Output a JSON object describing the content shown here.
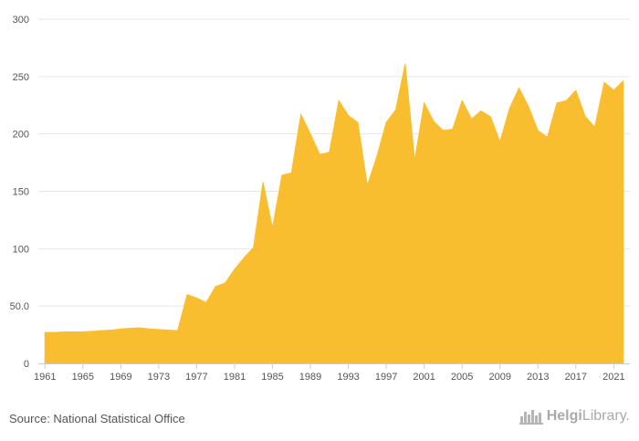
{
  "chart_data": {
    "type": "area",
    "series": [
      {
        "color": "#f9be2f",
        "x": [
          1961,
          1962,
          1963,
          1964,
          1965,
          1966,
          1967,
          1968,
          1969,
          1970,
          1971,
          1972,
          1973,
          1974,
          1975,
          1976,
          1977,
          1978,
          1979,
          1980,
          1981,
          1982,
          1983,
          1984,
          1985,
          1986,
          1987,
          1988,
          1989,
          1990,
          1991,
          1992,
          1993,
          1994,
          1995,
          1996,
          1997,
          1998,
          1999,
          2000,
          2001,
          2002,
          2003,
          2004,
          2005,
          2006,
          2007,
          2008,
          2009,
          2010,
          2011,
          2012,
          2013,
          2014,
          2015,
          2016,
          2017,
          2018,
          2019,
          2020,
          2021,
          2022
        ],
        "values": [
          27,
          27,
          27.5,
          27.5,
          27.5,
          28,
          28.5,
          29,
          30,
          30.5,
          31,
          30,
          29.5,
          29,
          28.5,
          60,
          57,
          53,
          67,
          70,
          82,
          92,
          101,
          158,
          118,
          164,
          166,
          217,
          200,
          182,
          184,
          229,
          216,
          210,
          155,
          180,
          210,
          221,
          261,
          177,
          227,
          211,
          203,
          204,
          229,
          213,
          220,
          215,
          193,
          222,
          240,
          224,
          203,
          197,
          227,
          229,
          238,
          215,
          206,
          245,
          238,
          246
        ]
      }
    ],
    "xlim": [
      1960.3,
      2022.7
    ],
    "ylim": [
      0,
      300
    ],
    "x_ticks": [
      "1961",
      "1965",
      "1969",
      "1973",
      "1977",
      "1981",
      "1985",
      "1989",
      "1993",
      "1997",
      "2001",
      "2005",
      "2009",
      "2013",
      "2017",
      "2021"
    ],
    "y_ticks": [
      "0",
      "50.0",
      "100",
      "150",
      "200",
      "250",
      "300"
    ],
    "y_tick_values": [
      0,
      50,
      100,
      150,
      200,
      250,
      300
    ],
    "grid": true,
    "gridColor": "#e6e6e6",
    "axisColor": "#cccccc"
  },
  "footer": {
    "source": "Source: National Statistical Office",
    "brand_prefix": "Helgi",
    "brand_suffix": "Library."
  }
}
